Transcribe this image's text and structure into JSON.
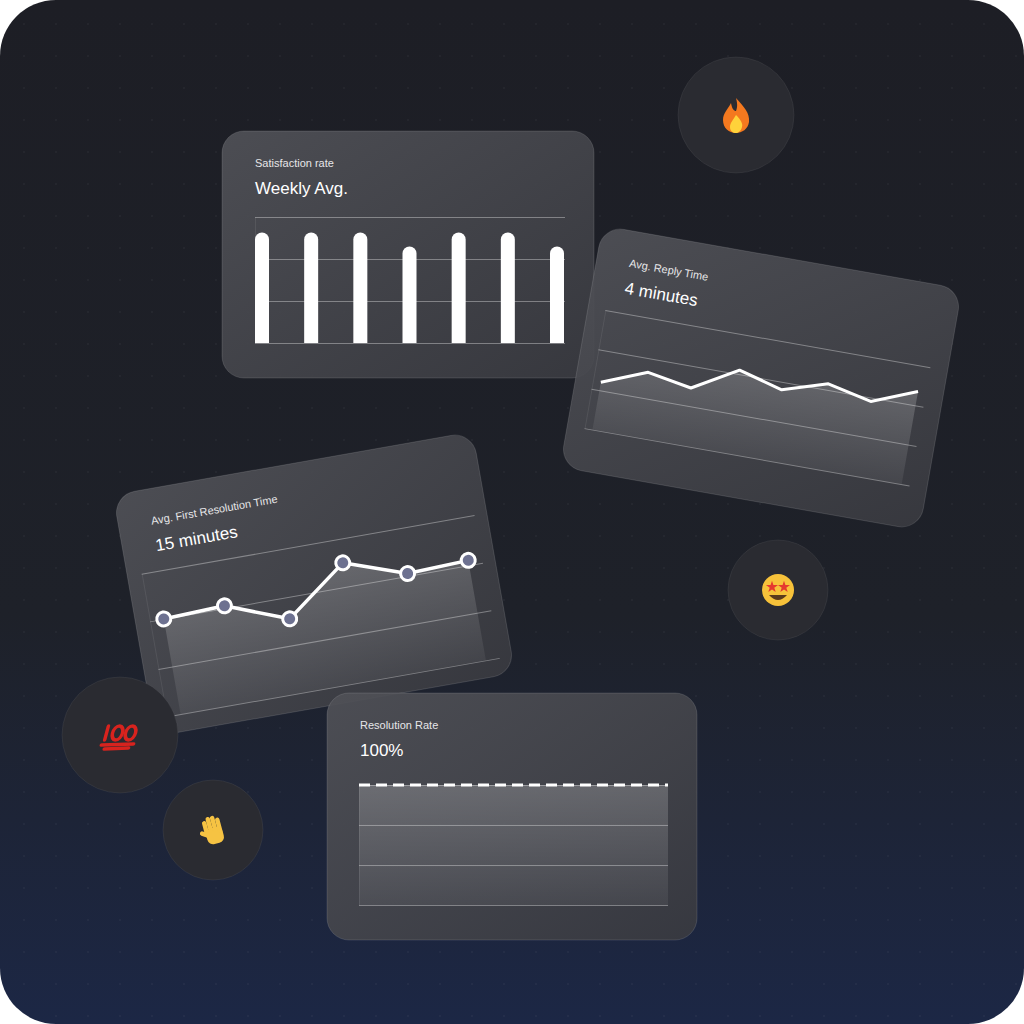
{
  "chart_data": [
    {
      "type": "bar",
      "title": "Satisfaction rate",
      "subtitle": "Weekly Avg.",
      "categories": [
        null,
        null,
        null,
        null,
        null,
        null,
        null
      ],
      "values": [
        79,
        79,
        79,
        69,
        79,
        79,
        69
      ],
      "color": "#ffffff",
      "ylim": [
        0,
        90
      ],
      "yticks": [
        0,
        30,
        60,
        90
      ],
      "grid": true,
      "tick_labels": false
    },
    {
      "type": "line",
      "title": "Avg. Reply Time",
      "subtitle": "4 minutes",
      "categories": [
        null,
        null,
        null,
        null,
        null,
        null,
        null,
        null
      ],
      "values": [
        2.4,
        3.3,
        2.9,
        4.2,
        3.6,
        4.3,
        3.8,
        4.7
      ],
      "color": "#ffffff",
      "ylim": [
        0,
        6
      ],
      "yticks": [
        0,
        2,
        4,
        6
      ],
      "grid": true,
      "tick_labels": false
    },
    {
      "type": "line",
      "title": "Avg. First Resolution Time",
      "subtitle": "15 minutes",
      "categories": [
        null,
        null,
        null,
        null,
        null,
        null
      ],
      "values": [
        20,
        20.5,
        15.5,
        25,
        20.5,
        21
      ],
      "color": "#ffffff",
      "marker": "circle",
      "ylim": [
        0,
        30
      ],
      "yticks": [
        0,
        10,
        20,
        30
      ],
      "grid": true,
      "tick_labels": false
    },
    {
      "type": "line",
      "title": "Resolution Rate",
      "subtitle": "100%",
      "categories": [
        null,
        null,
        null,
        null,
        null,
        null,
        null,
        null
      ],
      "values": [
        100,
        100,
        100,
        100,
        100,
        100,
        100,
        100
      ],
      "color": "#ffffff",
      "line_style": "dashed",
      "ylim": [
        0,
        100
      ],
      "yticks": [
        0,
        33.3,
        66.7,
        100
      ],
      "grid": true,
      "tick_labels": false
    }
  ]
}
